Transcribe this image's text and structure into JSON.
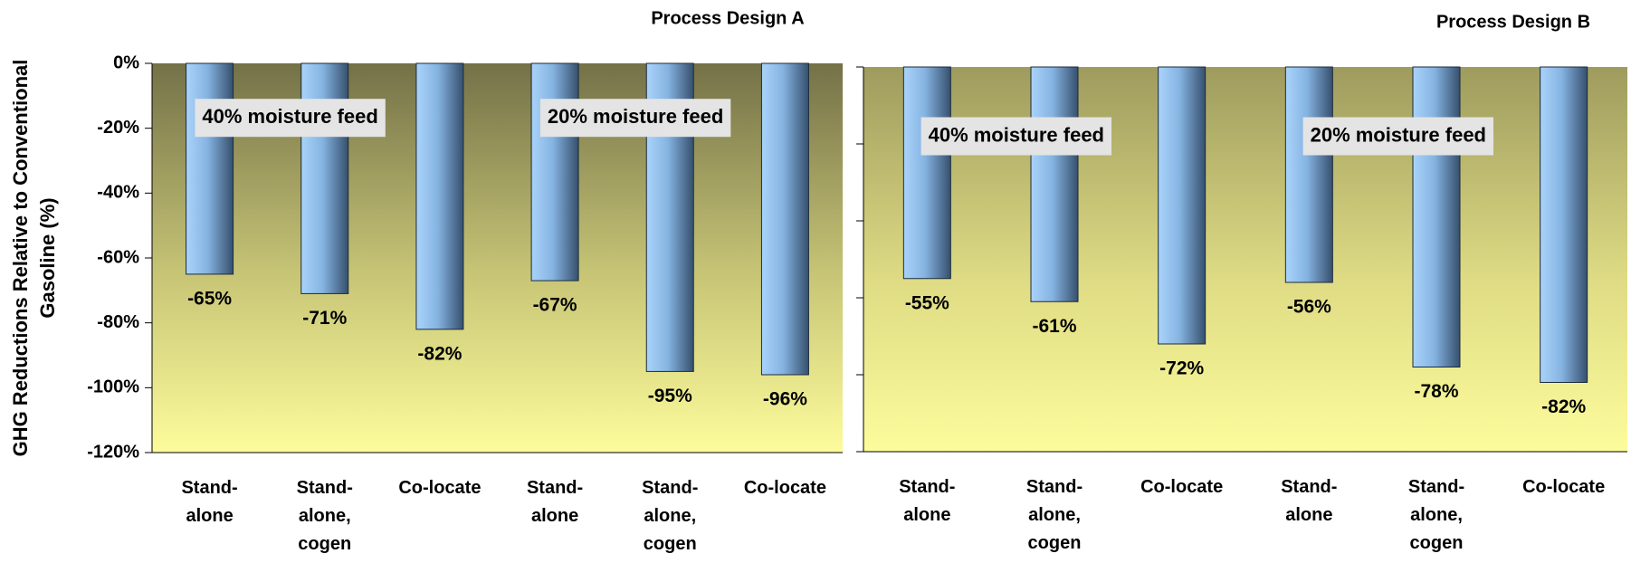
{
  "chart_data": [
    {
      "type": "bar",
      "title": "Process Design A",
      "ylabel": "GHG Reductions Relative to Conventional\nGasoline (%)",
      "categories": [
        "Stand-\nalone",
        "Stand-\nalone,\ncogen",
        "Co-locate",
        "Stand-\nalone",
        "Stand-\nalone,\ncogen",
        "Co-locate"
      ],
      "values": [
        -65,
        -71,
        -82,
        -67,
        -95,
        -96
      ],
      "value_labels": [
        "-65%",
        "-71%",
        "-82%",
        "-67%",
        "-95%",
        "-96%"
      ],
      "annotations": [
        "40%  moisture feed",
        "20%  moisture feed"
      ],
      "ylim": [
        -120,
        0
      ],
      "yticks": [
        {
          "value": 0,
          "label": "0%"
        },
        {
          "value": -20,
          "label": "-20%"
        },
        {
          "value": -40,
          "label": "-40%"
        },
        {
          "value": -60,
          "label": "-60%"
        },
        {
          "value": -80,
          "label": "-80%"
        },
        {
          "value": -100,
          "label": "-100%"
        },
        {
          "value": -120,
          "label": "-120%"
        }
      ]
    },
    {
      "type": "bar",
      "title": "Process Design B",
      "categories": [
        "Stand-\nalone",
        "Stand-\nalone,\ncogen",
        "Co-locate",
        "Stand-\nalone",
        "Stand-\nalone,\ncogen",
        "Co-locate"
      ],
      "values": [
        -55,
        -61,
        -72,
        -56,
        -78,
        -82
      ],
      "value_labels": [
        "-55%",
        "-61%",
        "-72%",
        "-56%",
        "-78%",
        "-82%"
      ],
      "annotations": [
        "40%  moisture feed",
        "20%  moisture feed"
      ],
      "ylim": [
        -100,
        0
      ],
      "yticks": [
        0,
        -20,
        -40,
        -60,
        -80,
        -100
      ]
    }
  ]
}
